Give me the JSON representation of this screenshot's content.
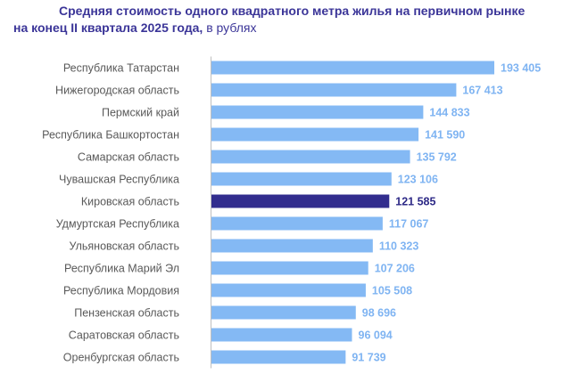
{
  "title": {
    "line1": "Средняя стоимость одного квадратного метра жилья на первичном рынке",
    "line2": "на конец II квартала 2025 года,",
    "unit": " в рублях"
  },
  "colors": {
    "bar": "#84b9f4",
    "highlight": "#322d8e",
    "value_label": "#7fb4f2",
    "value_label_highlight": "#2e2a87",
    "axis": "#bfbfbf"
  },
  "chart_data": {
    "type": "bar",
    "orientation": "horizontal",
    "title": "Средняя стоимость одного квадратного метра жилья на первичном рынке на конец II квартала 2025 года, в рублях",
    "xlabel": "",
    "ylabel": "",
    "xlim": [
      0,
      200000
    ],
    "grid": false,
    "highlight_index": 6,
    "categories": [
      "Республика Татарстан",
      "Нижегородская область",
      "Пермский край",
      "Республика Башкортостан",
      "Самарская область",
      "Чувашская Республика",
      "Кировская область",
      "Удмуртская Республика",
      "Ульяновская область",
      "Республика Марий Эл",
      "Республика Мордовия",
      "Пензенская область",
      "Саратовская область",
      "Оренбургская область"
    ],
    "values": [
      193405,
      167413,
      144833,
      141590,
      135792,
      123106,
      121585,
      117067,
      110323,
      107206,
      105508,
      98696,
      96094,
      91739
    ],
    "value_labels": [
      "193 405",
      "167 413",
      "144 833",
      "141 590",
      "135 792",
      "123 106",
      "121 585",
      "117 067",
      "110 323",
      "107 206",
      "105 508",
      "98 696",
      "96 094",
      "91 739"
    ]
  }
}
